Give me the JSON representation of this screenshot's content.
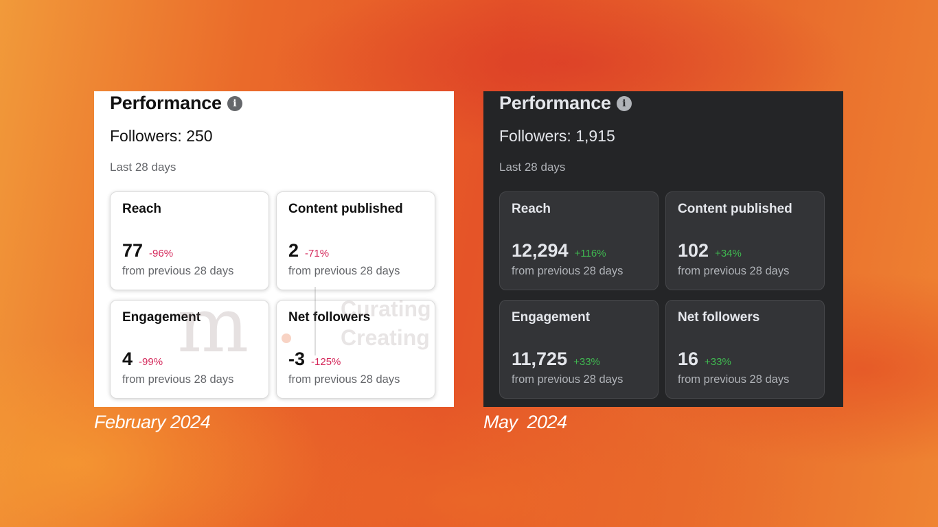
{
  "left": {
    "title": "Performance",
    "followers": "Followers: 250",
    "period": "Last 28 days",
    "cards": [
      {
        "label": "Reach",
        "value": "77",
        "delta": "-96%",
        "sub": "from previous 28 days"
      },
      {
        "label": "Content published",
        "value": "2",
        "delta": "-71%",
        "sub": "from previous 28 days"
      },
      {
        "label": "Engagement",
        "value": "4",
        "delta": "-99%",
        "sub": "from previous 28 days"
      },
      {
        "label": "Net followers",
        "value": "-3",
        "delta": "-125%",
        "sub": "from previous 28 days"
      }
    ],
    "caption": "February 2024"
  },
  "right": {
    "title": "Performance",
    "followers": "Followers: 1,915",
    "period": "Last 28 days",
    "cards": [
      {
        "label": "Reach",
        "value": "12,294",
        "delta": "+116%",
        "sub": "from previous 28 days"
      },
      {
        "label": "Content published",
        "value": "102",
        "delta": "+34%",
        "sub": "from previous 28 days"
      },
      {
        "label": "Engagement",
        "value": "11,725",
        "delta": "+33%",
        "sub": "from previous 28 days"
      },
      {
        "label": "Net followers",
        "value": "16",
        "delta": "+33%",
        "sub": "from previous 28 days"
      }
    ],
    "caption": "May  2024"
  },
  "watermark": {
    "letter": "m",
    "line1": "Curating",
    "line2": "Creating"
  },
  "icons": {
    "info": "info-icon"
  },
  "colors": {
    "negative": "#d4285a",
    "positive": "#3fb950",
    "dark_panel": "#242527"
  }
}
